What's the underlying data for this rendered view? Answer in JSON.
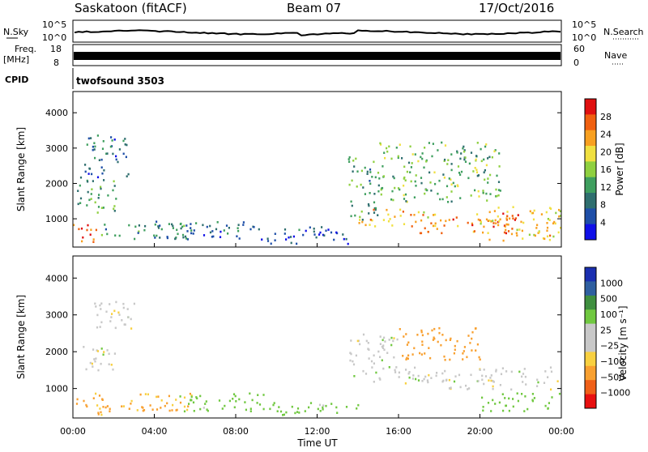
{
  "header": {
    "station": "Saskatoon (fitACF)",
    "beam": "Beam 07",
    "date": "17/Oct/2016"
  },
  "strips": {
    "nsky_label": "N.Sky",
    "nsky_ticks": [
      "10^5",
      "10^0"
    ],
    "nsearch_label": "N.Search",
    "nsearch_ticks": [
      "10^5",
      "10^0"
    ],
    "freq_label": "Freq.",
    "freq_unit": "[MHz]",
    "freq_ticks": [
      "18",
      "8"
    ],
    "nave_label": "Nave",
    "nave_ticks": [
      "60",
      "0"
    ],
    "cpid_label": "CPID",
    "cpid_value": "twofsound 3503"
  },
  "colors": {
    "power": [
      "#1010e8",
      "#1f4fa8",
      "#2f6f6f",
      "#3f9f5f",
      "#8fd040",
      "#f0e040",
      "#f8a020",
      "#f06010",
      "#e01010"
    ],
    "velocity": [
      "#e81010",
      "#f06018",
      "#f8a030",
      "#f8d040",
      "#c8c8c8",
      "#c8c8c8",
      "#70c840",
      "#3f8f3f",
      "#2f5fa0",
      "#1a2fb0"
    ]
  },
  "chart_data": [
    {
      "type": "heatmap",
      "title": "Power",
      "ylabel": "Slant Range [km]",
      "xlabel": "",
      "ylim": [
        200,
        4600
      ],
      "xlim": [
        0,
        24
      ],
      "yticks": [
        "4000",
        "3000",
        "2000",
        "1000"
      ],
      "colorbar_label": "Power [dB]",
      "colorbar_ticks": [
        "28",
        "24",
        "20",
        "16",
        "12",
        "8",
        "4"
      ],
      "colorbar_range": [
        0,
        32
      ],
      "regions": [
        {
          "t0": 0.0,
          "t1": 1.2,
          "r0": 300,
          "r1": 900,
          "level": 26
        },
        {
          "t0": 0.2,
          "t1": 2.2,
          "r0": 1200,
          "r1": 2200,
          "level": 12
        },
        {
          "t0": 0.5,
          "t1": 2.7,
          "r0": 2200,
          "r1": 3400,
          "level": 8
        },
        {
          "t0": 1.0,
          "t1": 6.0,
          "r0": 450,
          "r1": 900,
          "level": 10
        },
        {
          "t0": 4.0,
          "t1": 9.0,
          "r0": 450,
          "r1": 950,
          "level": 8
        },
        {
          "t0": 9.0,
          "t1": 13.5,
          "r0": 300,
          "r1": 800,
          "level": 6
        },
        {
          "t0": 13.5,
          "t1": 15.0,
          "r0": 1000,
          "r1": 2800,
          "level": 12
        },
        {
          "t0": 14.0,
          "t1": 18.0,
          "r0": 800,
          "r1": 1300,
          "level": 22
        },
        {
          "t0": 17.0,
          "t1": 22.0,
          "r0": 600,
          "r1": 1200,
          "level": 26
        },
        {
          "t0": 15.0,
          "t1": 21.0,
          "r0": 1500,
          "r1": 3200,
          "level": 14
        },
        {
          "t0": 20.0,
          "t1": 24.0,
          "r0": 400,
          "r1": 1400,
          "level": 20
        }
      ]
    },
    {
      "type": "heatmap",
      "title": "Velocity",
      "ylabel": "Slant Range [km]",
      "xlabel": "Time UT",
      "ylim": [
        200,
        4600
      ],
      "xlim": [
        0,
        24
      ],
      "yticks": [
        "4000",
        "3000",
        "2000",
        "1000"
      ],
      "xticks": [
        "00:00",
        "04:00",
        "08:00",
        "12:00",
        "16:00",
        "20:00",
        "00:00"
      ],
      "colorbar_label": "Velocity [m s⁻¹]",
      "colorbar_ticks": [
        "1000",
        "500",
        "100",
        "25",
        "−25",
        "−100",
        "−500",
        "−1000"
      ],
      "regions": [
        {
          "t0": 0.0,
          "t1": 1.5,
          "r0": 300,
          "r1": 900,
          "value": -120
        },
        {
          "t0": 0.3,
          "t1": 2.2,
          "r0": 1500,
          "r1": 2200,
          "value": 0
        },
        {
          "t0": 1.0,
          "t1": 3.0,
          "r0": 2500,
          "r1": 3400,
          "value": 0
        },
        {
          "t0": 1.0,
          "t1": 6.0,
          "r0": 400,
          "r1": 900,
          "value": -110
        },
        {
          "t0": 5.0,
          "t1": 10.0,
          "r0": 400,
          "r1": 900,
          "value": 50
        },
        {
          "t0": 10.0,
          "t1": 14.0,
          "r0": 300,
          "r1": 700,
          "value": 40
        },
        {
          "t0": 13.5,
          "t1": 16.0,
          "r0": 1200,
          "r1": 2500,
          "value": 0
        },
        {
          "t0": 16.0,
          "t1": 24.0,
          "r0": 1000,
          "r1": 1600,
          "value": 0
        },
        {
          "t0": 16.0,
          "t1": 20.0,
          "r0": 1800,
          "r1": 2700,
          "value": -300
        },
        {
          "t0": 20.0,
          "t1": 24.0,
          "r0": 400,
          "r1": 900,
          "value": 60
        }
      ]
    }
  ]
}
